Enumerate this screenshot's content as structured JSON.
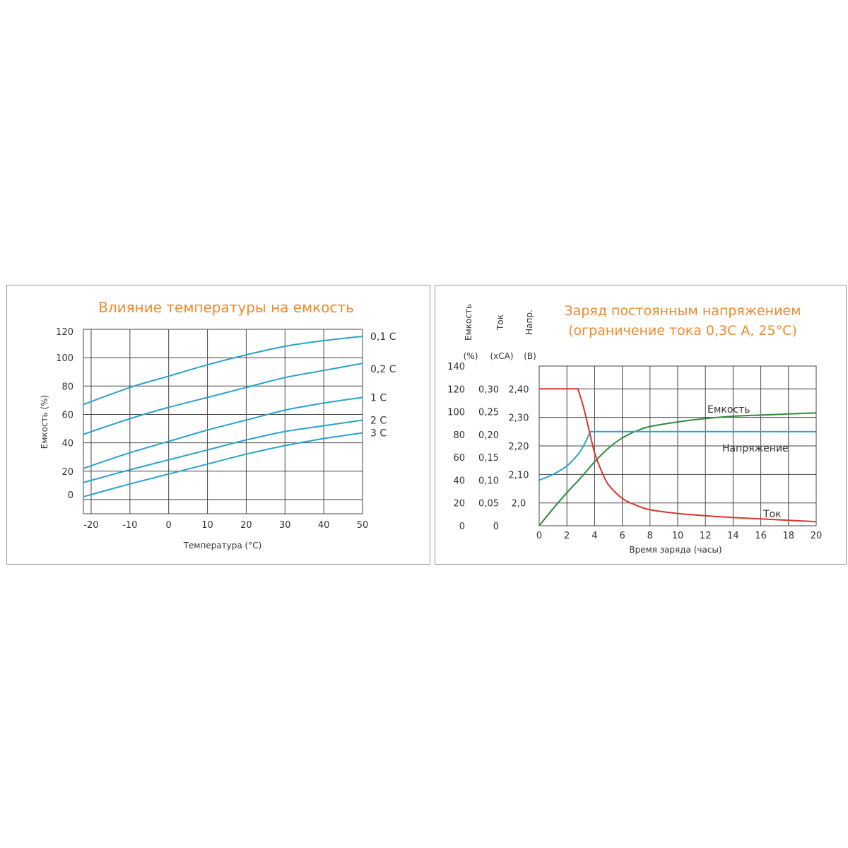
{
  "chart_data": [
    {
      "type": "line",
      "title": "Влияние температуры на емкость",
      "xlabel": "Температура (°C)",
      "ylabel": "Емкость (%)",
      "xlim": [
        -22,
        50
      ],
      "ylim": [
        -10,
        120
      ],
      "x_ticks": [
        -20,
        -10,
        0,
        10,
        20,
        30,
        40,
        50
      ],
      "x_tick_labels": [
        "-20",
        "-10",
        "0",
        "10",
        "20",
        "30",
        "40",
        "50"
      ],
      "y_ticks": [
        0,
        20,
        40,
        60,
        80,
        100,
        120
      ],
      "y_tick_labels": [
        "0",
        "20",
        "40",
        "60",
        "80",
        "100",
        "120"
      ],
      "grid": true,
      "color": "#2aa3c9",
      "series": [
        {
          "name": "0,1 С",
          "x": [
            -22,
            -10,
            0,
            10,
            20,
            30,
            40,
            50
          ],
          "y": [
            67,
            79,
            87,
            95,
            102,
            108,
            112,
            115
          ]
        },
        {
          "name": "0,2 С",
          "x": [
            -22,
            -10,
            0,
            10,
            20,
            30,
            40,
            50
          ],
          "y": [
            46,
            57,
            65,
            72,
            79,
            86,
            91,
            96
          ]
        },
        {
          "name": "1 С",
          "x": [
            -22,
            -10,
            0,
            10,
            20,
            30,
            40,
            50
          ],
          "y": [
            22,
            33,
            41,
            49,
            56,
            63,
            68,
            72
          ]
        },
        {
          "name": "2 С",
          "x": [
            -22,
            -10,
            0,
            10,
            20,
            30,
            40,
            50
          ],
          "y": [
            12,
            21,
            28,
            35,
            42,
            48,
            52,
            56
          ]
        },
        {
          "name": "3 С",
          "x": [
            -22,
            -10,
            0,
            10,
            20,
            30,
            40,
            50
          ],
          "y": [
            2,
            11,
            18,
            25,
            32,
            38,
            43,
            47
          ]
        }
      ]
    },
    {
      "type": "line",
      "title": [
        "Заряд постоянным напряжением",
        "(ограничение тока 0,3С А, 25°C)"
      ],
      "xlabel": "Время заряда (часы)",
      "xlim": [
        0,
        20
      ],
      "x_ticks": [
        0,
        2,
        4,
        6,
        8,
        10,
        12,
        14,
        16,
        18,
        20
      ],
      "x_tick_labels": [
        "0",
        "2",
        "4",
        "6",
        "8",
        "10",
        "12",
        "14",
        "16",
        "18",
        "20"
      ],
      "grid": true,
      "axes": [
        {
          "id": "capacity",
          "label": "Емкость",
          "unit": "(%)",
          "range": [
            0,
            140
          ],
          "ticks": [
            0,
            20,
            40,
            60,
            80,
            100,
            120,
            140
          ],
          "tick_labels": [
            "0",
            "20",
            "40",
            "60",
            "80",
            "100",
            "120",
            "140"
          ]
        },
        {
          "id": "current",
          "label": "Ток",
          "unit": "(xCA)",
          "range": [
            0,
            0.35
          ],
          "ticks": [
            0,
            0.05,
            0.1,
            0.15,
            0.2,
            0.25,
            0.3
          ],
          "tick_labels": [
            "0",
            "0,05",
            "0,10",
            "0,15",
            "0,20",
            "0,25",
            "0,30"
          ]
        },
        {
          "id": "voltage",
          "label": "Напр.",
          "unit": "(В)",
          "range": [
            1.92,
            2.48
          ],
          "ticks": [
            2.0,
            2.1,
            2.2,
            2.3,
            2.4
          ],
          "tick_labels": [
            "2,0",
            "2,10",
            "2,20",
            "2,30",
            "2,40"
          ]
        }
      ],
      "series": [
        {
          "name": "Емкость",
          "axis": "capacity",
          "color": "#2e8b3e",
          "x": [
            0,
            1,
            2,
            3,
            4,
            5,
            6,
            7,
            8,
            10,
            12,
            14,
            16,
            18,
            20
          ],
          "y": [
            0,
            15,
            29,
            42,
            56,
            68,
            77,
            83,
            87,
            91,
            94,
            96,
            97,
            98,
            99
          ]
        },
        {
          "name": "Напряжение",
          "axis": "voltage",
          "color": "#2aa3c9",
          "x": [
            0,
            1,
            2,
            2.8,
            3.2,
            3.5,
            3.7,
            20
          ],
          "y": [
            2.08,
            2.1,
            2.13,
            2.17,
            2.2,
            2.23,
            2.25,
            2.25
          ]
        },
        {
          "name": "Ток",
          "axis": "current",
          "color": "#d9362f",
          "x": [
            0,
            2.8,
            3.2,
            3.6,
            4,
            4.5,
            5,
            6,
            7,
            8,
            10,
            12,
            14,
            16,
            18,
            20
          ],
          "y": [
            0.3,
            0.3,
            0.26,
            0.21,
            0.16,
            0.12,
            0.09,
            0.06,
            0.045,
            0.035,
            0.027,
            0.022,
            0.018,
            0.015,
            0.012,
            0.009
          ]
        }
      ]
    }
  ]
}
